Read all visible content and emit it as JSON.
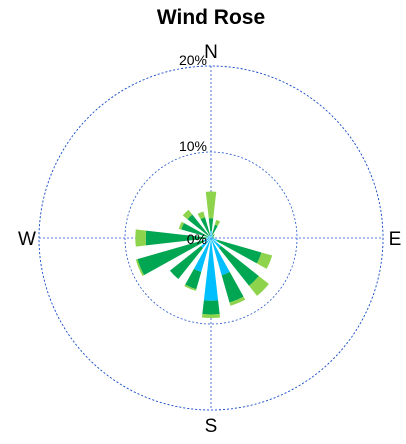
{
  "chart_data": {
    "type": "wind-rose",
    "title": "Wind Rose",
    "directions": [
      "N",
      "E",
      "S",
      "W"
    ],
    "radial_ticks": [
      "0%",
      "10%",
      "20%"
    ],
    "radial_tick_values": [
      0,
      10,
      20
    ],
    "rmax": 20,
    "grid": true,
    "series": [
      {
        "color": "#00bfff"
      },
      {
        "color": "#00a651"
      },
      {
        "color": "#8ed34c"
      }
    ],
    "sectors": [
      {
        "direction_deg": 0,
        "values": [
          0.8,
          1.5,
          3.1
        ]
      },
      {
        "direction_deg": 22.5,
        "values": [
          0.4,
          1.2,
          0.6
        ]
      },
      {
        "direction_deg": 45,
        "values": [
          0.2,
          0.3,
          0.1
        ]
      },
      {
        "direction_deg": 67.5,
        "values": [
          0.2,
          0.2,
          0.0
        ]
      },
      {
        "direction_deg": 90,
        "values": [
          0.2,
          0.2,
          0.0
        ]
      },
      {
        "direction_deg": 112.5,
        "values": [
          0.8,
          5.3,
          1.3
        ]
      },
      {
        "direction_deg": 135,
        "values": [
          1.5,
          5.6,
          1.5
        ]
      },
      {
        "direction_deg": 157.5,
        "values": [
          4.5,
          3.3,
          0.4
        ]
      },
      {
        "direction_deg": 180,
        "values": [
          7.3,
          1.6,
          0.4
        ]
      },
      {
        "direction_deg": 202.5,
        "values": [
          4.1,
          2.1,
          0.2
        ]
      },
      {
        "direction_deg": 225,
        "values": [
          1.5,
          4.6,
          0.0
        ]
      },
      {
        "direction_deg": 247.5,
        "values": [
          0.9,
          8.0,
          0.2
        ]
      },
      {
        "direction_deg": 270,
        "values": [
          0.5,
          7.1,
          1.2
        ]
      },
      {
        "direction_deg": 292.5,
        "values": [
          0.4,
          3.2,
          0.3
        ]
      },
      {
        "direction_deg": 315,
        "values": [
          0.4,
          3.1,
          0.7
        ]
      },
      {
        "direction_deg": 337.5,
        "values": [
          0.3,
          2.2,
          0.7
        ]
      }
    ]
  }
}
